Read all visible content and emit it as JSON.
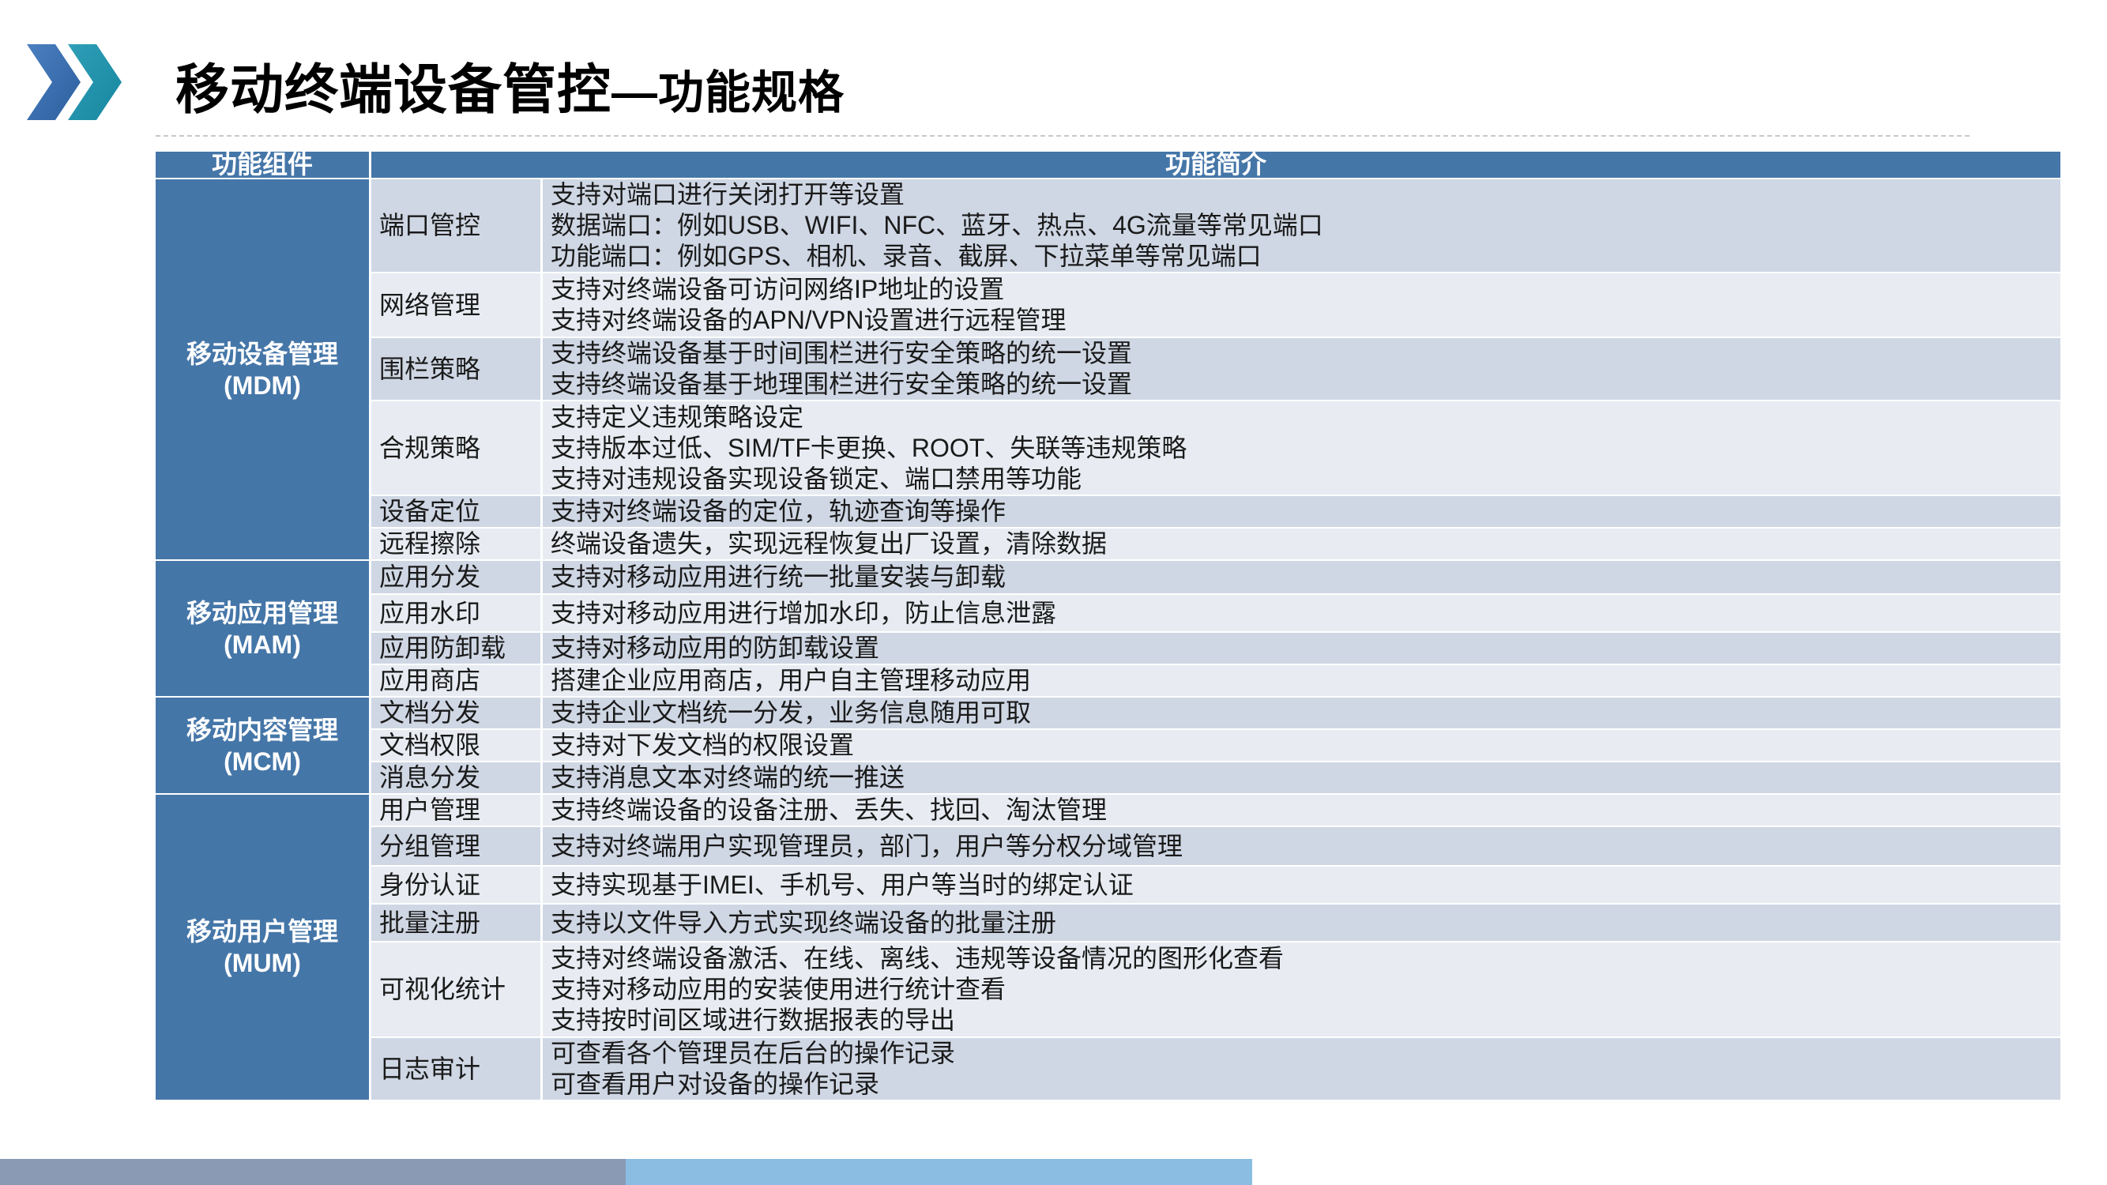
{
  "title": {
    "main": "移动终端设备管控",
    "sub": "—功能规格"
  },
  "colors": {
    "header": "#4576a8",
    "row_dark": "#cfd7e4",
    "row_light": "#e8ecf2",
    "footer_left": "#8a9ab5",
    "footer_right": "#8bbde3"
  },
  "table": {
    "headers": [
      "功能组件",
      "功能简介"
    ],
    "groups": [
      {
        "name": "移动设备管理",
        "abbr": "(MDM)"
      },
      {
        "name": "移动应用管理",
        "abbr": "(MAM)"
      },
      {
        "name": "移动内容管理",
        "abbr": "(MCM)"
      },
      {
        "name": "移动用户管理",
        "abbr": "(MUM)"
      }
    ],
    "rows": [
      {
        "feature": "端口管控",
        "lines": [
          "支持对端口进行关闭打开等设置",
          "数据端口：例如USB、WIFI、NFC、蓝牙、热点、4G流量等常见端口",
          "功能端口：例如GPS、相机、录音、截屏、下拉菜单等常见端口"
        ]
      },
      {
        "feature": "网络管理",
        "lines": [
          "支持对终端设备可访问网络IP地址的设置",
          "支持对终端设备的APN/VPN设置进行远程管理"
        ]
      },
      {
        "feature": "围栏策略",
        "lines": [
          "支持终端设备基于时间围栏进行安全策略的统一设置",
          "支持终端设备基于地理围栏进行安全策略的统一设置"
        ]
      },
      {
        "feature": "合规策略",
        "lines": [
          "支持定义违规策略设定",
          "支持版本过低、SIM/TF卡更换、ROOT、失联等违规策略",
          "支持对违规设备实现设备锁定、端口禁用等功能"
        ]
      },
      {
        "feature": "设备定位",
        "lines": [
          "支持对终端设备的定位，轨迹查询等操作"
        ]
      },
      {
        "feature": "远程擦除",
        "lines": [
          "终端设备遗失，实现远程恢复出厂设置，清除数据"
        ]
      },
      {
        "feature": "应用分发",
        "lines": [
          "支持对移动应用进行统一批量安装与卸载"
        ]
      },
      {
        "feature": "应用水印",
        "lines": [
          "支持对移动应用进行增加水印，防止信息泄露"
        ]
      },
      {
        "feature": "应用防卸载",
        "lines": [
          "支持对移动应用的防卸载设置"
        ]
      },
      {
        "feature": "应用商店",
        "lines": [
          "搭建企业应用商店，用户自主管理移动应用"
        ]
      },
      {
        "feature": "文档分发",
        "lines": [
          "支持企业文档统一分发，业务信息随用可取"
        ]
      },
      {
        "feature": "文档权限",
        "lines": [
          "支持对下发文档的权限设置"
        ]
      },
      {
        "feature": "消息分发",
        "lines": [
          "支持消息文本对终端的统一推送"
        ]
      },
      {
        "feature": "用户管理",
        "lines": [
          "支持终端设备的设备注册、丢失、找回、淘汰管理"
        ]
      },
      {
        "feature": "分组管理",
        "lines": [
          "支持对终端用户实现管理员，部门，用户等分权分域管理"
        ]
      },
      {
        "feature": "身份认证",
        "lines": [
          "支持实现基于IMEI、手机号、用户等当时的绑定认证"
        ]
      },
      {
        "feature": "批量注册",
        "lines": [
          "支持以文件导入方式实现终端设备的批量注册"
        ]
      },
      {
        "feature": "可视化统计",
        "lines": [
          "支持对终端设备激活、在线、离线、违规等设备情况的图形化查看",
          "支持对移动应用的安装使用进行统计查看",
          "支持按时间区域进行数据报表的导出"
        ]
      },
      {
        "feature": "日志审计",
        "lines": [
          "可查看各个管理员在后台的操作记录",
          "可查看用户对设备的操作记录"
        ]
      }
    ]
  }
}
